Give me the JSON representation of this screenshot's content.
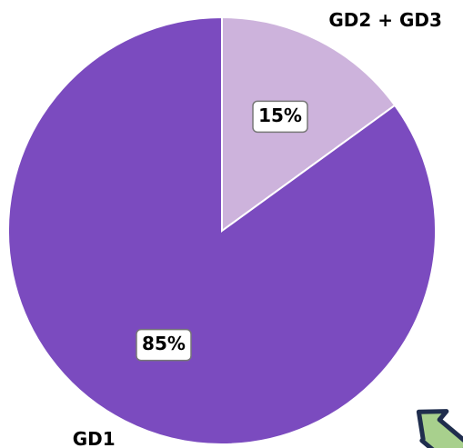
{
  "chart_data": {
    "type": "pie",
    "categories": [
      "GD2 + GD3",
      "GD1"
    ],
    "values": [
      15,
      85
    ],
    "value_labels": [
      "15%",
      "85%"
    ],
    "colors": [
      "#cdb3dc",
      "#7b4bbf"
    ]
  }
}
